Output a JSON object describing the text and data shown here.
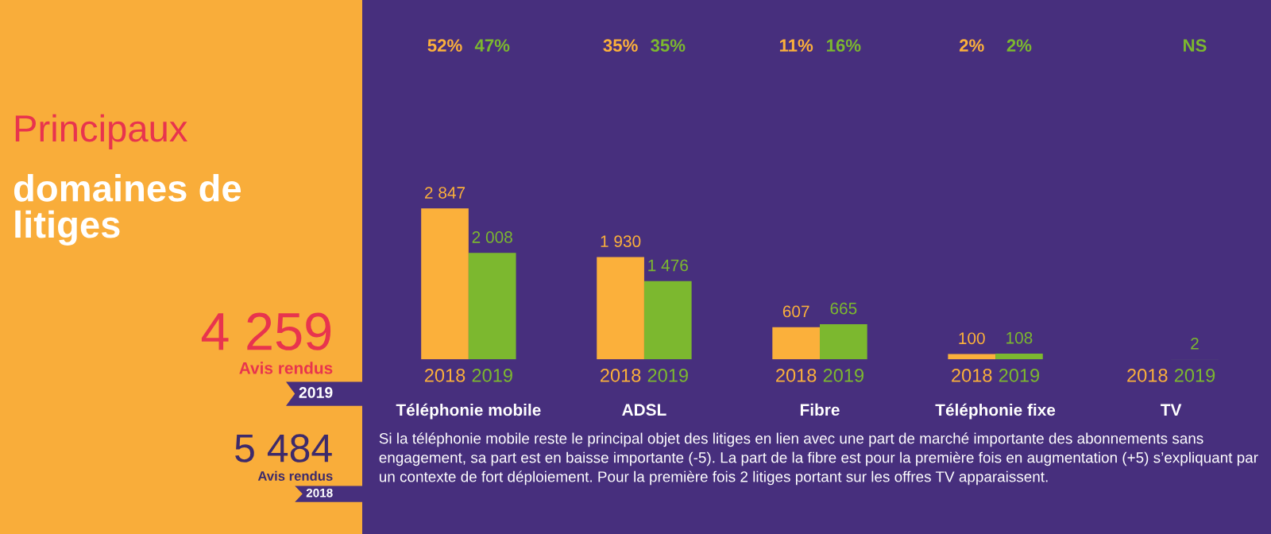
{
  "chart_data": {
    "type": "bar",
    "title": "Principaux",
    "subtitle": "domaines de\nlitiges",
    "categories": [
      "Téléphonie mobile",
      "ADSL",
      "Fibre",
      "Téléphonie fixe",
      "TV"
    ],
    "series": [
      {
        "name": "2018",
        "color": "#fbb03b",
        "values": [
          2847,
          1930,
          607,
          100,
          null
        ]
      },
      {
        "name": "2019",
        "color": "#7cb82f",
        "values": [
          2008,
          1476,
          665,
          108,
          2
        ]
      }
    ],
    "data_labels": true,
    "annotations": [
      "52%",
      "47%",
      "35%",
      "35%",
      "11%",
      "16%",
      "2%",
      "2%",
      "NS",
      "4 259",
      "Avis rendus",
      "2019",
      "5 484",
      "Avis rendus",
      "2018",
      "Si la téléphonie mobile reste le principal objet des litiges en lien avec une part de marché importante des abonnements sans engagement, sa part est en baisse importante (-5). La part de la fibre est pour la première fois en augmentation (+5) s’expliquant par un contexte de fort déploiement. Pour la première fois 2 litiges portant sur les offres TV apparaissent."
    ],
    "grid": false,
    "legend": false
  }
}
